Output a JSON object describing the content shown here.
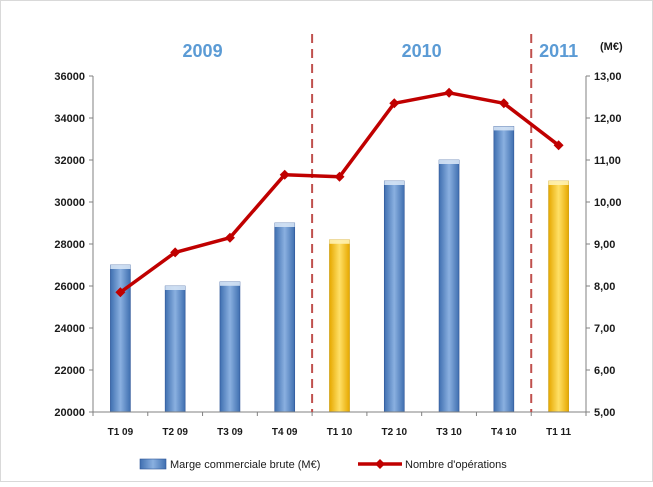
{
  "chart_data": {
    "type": "bar",
    "categories": [
      "T1 09",
      "T2 09",
      "T3 09",
      "T4 09",
      "T1 10",
      "T2 10",
      "T3 10",
      "T4 10",
      "T1 11"
    ],
    "year_labels": [
      "2009",
      "2010",
      "2011"
    ],
    "left_axis": {
      "ticks": [
        "36000",
        "34000",
        "32000",
        "30000",
        "28000",
        "26000",
        "24000",
        "22000",
        "20000"
      ],
      "ylim": [
        20000,
        36000
      ]
    },
    "right_axis": {
      "unit": "(M€)",
      "ticks": [
        "13,00",
        "12,00",
        "11,00",
        "10,00",
        "9,00",
        "8,00",
        "7,00",
        "6,00",
        "5,00"
      ],
      "ylim": [
        5,
        13
      ]
    },
    "series": [
      {
        "name": "Marge commerciale brute (M€)",
        "kind": "bar",
        "axis": "right",
        "values": [
          8.5,
          8.0,
          8.1,
          9.5,
          9.1,
          10.5,
          11.0,
          11.8,
          10.5
        ],
        "colors": [
          "#4f81bd",
          "#4f81bd",
          "#4f81bd",
          "#4f81bd",
          "#ffc000",
          "#4f81bd",
          "#4f81bd",
          "#4f81bd",
          "#ffc000"
        ]
      },
      {
        "name": "Nombre d'opérations",
        "kind": "line",
        "axis": "left",
        "color": "#c00000",
        "values": [
          25700,
          27600,
          28300,
          31300,
          31200,
          34700,
          35200,
          34700,
          32700
        ]
      }
    ],
    "legend": "bottom",
    "grid": false
  }
}
